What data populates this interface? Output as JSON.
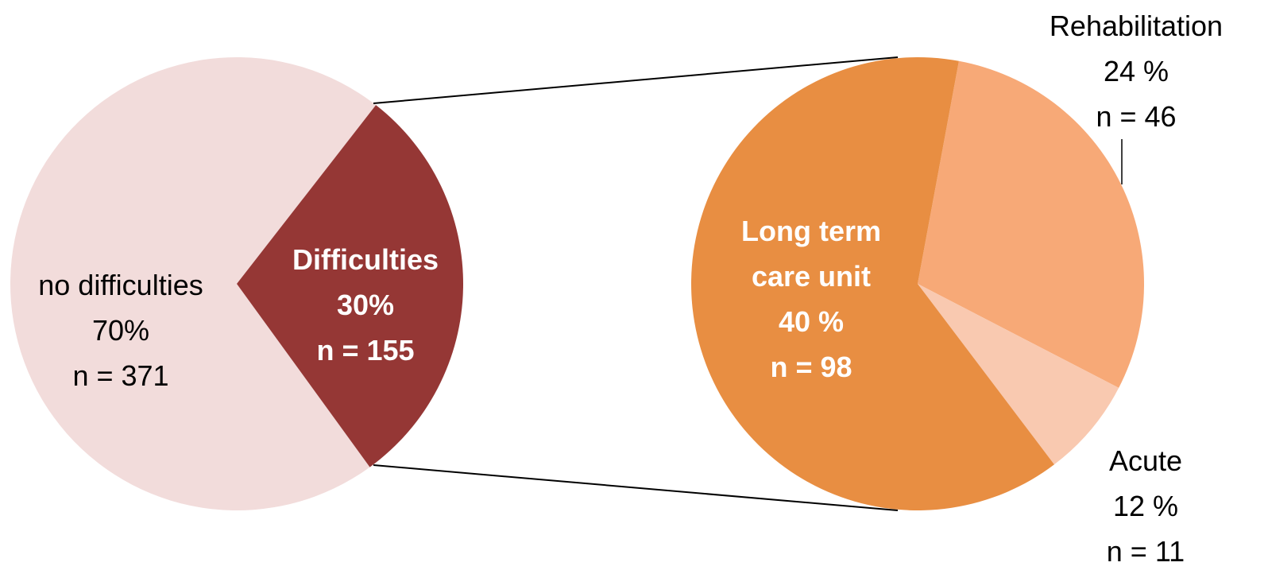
{
  "chart_data": [
    {
      "type": "pie",
      "categories": [
        "no difficulties",
        "Difficulties"
      ],
      "values": [
        371,
        155
      ],
      "value_labels": [
        "n =  371",
        "n = 155"
      ],
      "percent_labels": [
        "70%",
        "30%"
      ],
      "colors": [
        "#f2dcdb",
        "#953735"
      ]
    },
    {
      "type": "pie",
      "categories": [
        "Rehabilitation",
        "Acute",
        "Long term care unit"
      ],
      "values": [
        46,
        11,
        98
      ],
      "value_labels": [
        "n = 46",
        "n  = 11",
        "n = 98"
      ],
      "percent_labels": [
        "24 %",
        "12 %",
        "40 %"
      ],
      "colors": [
        "#f7a977",
        "#f9c9b0",
        "#e88e42"
      ]
    }
  ]
}
